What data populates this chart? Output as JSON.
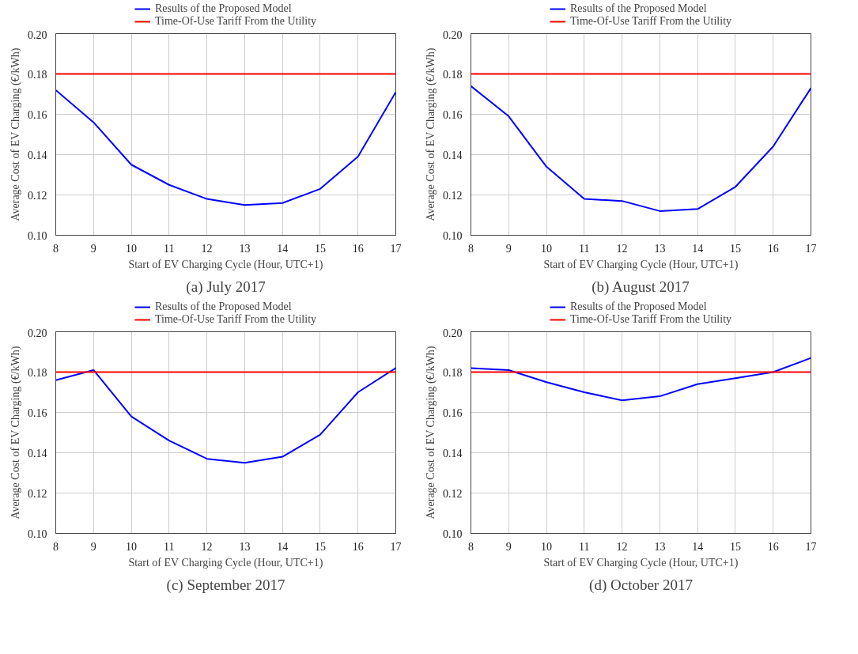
{
  "chart_data": [
    {
      "type": "line",
      "xlabel": "Start of EV Charging Cycle (Hour, UTC+1)",
      "ylabel": "Average Cost of EV Charging (€/kWh)",
      "annotations": [
        "(a) July 2017"
      ],
      "x": [
        8,
        9,
        10,
        11,
        12,
        13,
        14,
        15,
        16,
        17
      ],
      "series": [
        {
          "name": "Results of the Proposed Model",
          "color": "#0000ff",
          "values": [
            0.172,
            0.156,
            0.135,
            0.125,
            0.118,
            0.115,
            0.116,
            0.123,
            0.139,
            0.171
          ]
        }
      ],
      "ref_lines": [
        {
          "axis": "y",
          "value": 0.18,
          "label": "Time-Of-Use Tariff From the Utility",
          "color": "#ff0000"
        }
      ],
      "xlim": [
        8,
        17
      ],
      "ylim": [
        0.1,
        0.2
      ],
      "xticks": [
        8,
        9,
        10,
        11,
        12,
        13,
        14,
        15,
        16,
        17
      ],
      "yticks": [
        {
          "value": 0.1,
          "label": "0.10"
        },
        {
          "value": 0.12,
          "label": "0.12"
        },
        {
          "value": 0.14,
          "label": "0.14"
        },
        {
          "value": 0.16,
          "label": "0.16"
        },
        {
          "value": 0.18,
          "label": "0.18"
        },
        {
          "value": 0.2,
          "label": "0.20"
        }
      ],
      "grid": true,
      "legend": "top",
      "marker": "none",
      "line_style": "solid"
    },
    {
      "type": "line",
      "xlabel": "Start of EV Charging Cycle (Hour, UTC+1)",
      "ylabel": "Average Cost of EV Charging (€/kWh)",
      "annotations": [
        "(b) August 2017"
      ],
      "x": [
        8,
        9,
        10,
        11,
        12,
        13,
        14,
        15,
        16,
        17
      ],
      "series": [
        {
          "name": "Results of the Proposed Model",
          "color": "#0000ff",
          "values": [
            0.174,
            0.159,
            0.134,
            0.118,
            0.117,
            0.112,
            0.113,
            0.124,
            0.144,
            0.173
          ]
        }
      ],
      "ref_lines": [
        {
          "axis": "y",
          "value": 0.18,
          "label": "Time-Of-Use Tariff From the Utility",
          "color": "#ff0000"
        }
      ],
      "xlim": [
        8,
        17
      ],
      "ylim": [
        0.1,
        0.2
      ],
      "xticks": [
        8,
        9,
        10,
        11,
        12,
        13,
        14,
        15,
        16,
        17
      ],
      "yticks": [
        {
          "value": 0.1,
          "label": "0.10"
        },
        {
          "value": 0.12,
          "label": "0.12"
        },
        {
          "value": 0.14,
          "label": "0.14"
        },
        {
          "value": 0.16,
          "label": "0.16"
        },
        {
          "value": 0.18,
          "label": "0.18"
        },
        {
          "value": 0.2,
          "label": "0.20"
        }
      ],
      "grid": true,
      "legend": "top",
      "marker": "none",
      "line_style": "solid"
    },
    {
      "type": "line",
      "xlabel": "Start of EV Charging Cycle (Hour, UTC+1)",
      "ylabel": "Average Cost of EV Charging (€/kWh)",
      "annotations": [
        "(c) September 2017"
      ],
      "x": [
        8,
        9,
        10,
        11,
        12,
        13,
        14,
        15,
        16,
        17
      ],
      "series": [
        {
          "name": "Results of the Proposed Model",
          "color": "#0000ff",
          "values": [
            0.176,
            0.181,
            0.158,
            0.146,
            0.137,
            0.135,
            0.138,
            0.149,
            0.17,
            0.182
          ]
        }
      ],
      "ref_lines": [
        {
          "axis": "y",
          "value": 0.18,
          "label": "Time-Of-Use Tariff From the Utility",
          "color": "#ff0000"
        }
      ],
      "xlim": [
        8,
        17
      ],
      "ylim": [
        0.1,
        0.2
      ],
      "xticks": [
        8,
        9,
        10,
        11,
        12,
        13,
        14,
        15,
        16,
        17
      ],
      "yticks": [
        {
          "value": 0.1,
          "label": "0.10"
        },
        {
          "value": 0.12,
          "label": "0.12"
        },
        {
          "value": 0.14,
          "label": "0.14"
        },
        {
          "value": 0.16,
          "label": "0.16"
        },
        {
          "value": 0.18,
          "label": "0.18"
        },
        {
          "value": 0.2,
          "label": "0.20"
        }
      ],
      "grid": true,
      "legend": "top",
      "marker": "none",
      "line_style": "solid"
    },
    {
      "type": "line",
      "xlabel": "Start of EV Charging Cycle (Hour, UTC+1)",
      "ylabel": "Average Cost of EV Charging (€/kWh)",
      "annotations": [
        "(d) October 2017"
      ],
      "x": [
        8,
        9,
        10,
        11,
        12,
        13,
        14,
        15,
        16,
        17
      ],
      "series": [
        {
          "name": "Results of the Proposed Model",
          "color": "#0000ff",
          "values": [
            0.182,
            0.181,
            0.175,
            0.17,
            0.166,
            0.168,
            0.174,
            0.177,
            0.18,
            0.187
          ]
        }
      ],
      "ref_lines": [
        {
          "axis": "y",
          "value": 0.18,
          "label": "Time-Of-Use Tariff From the Utility",
          "color": "#ff0000"
        }
      ],
      "xlim": [
        8,
        17
      ],
      "ylim": [
        0.1,
        0.2
      ],
      "xticks": [
        8,
        9,
        10,
        11,
        12,
        13,
        14,
        15,
        16,
        17
      ],
      "yticks": [
        {
          "value": 0.1,
          "label": "0.10"
        },
        {
          "value": 0.12,
          "label": "0.12"
        },
        {
          "value": 0.14,
          "label": "0.14"
        },
        {
          "value": 0.16,
          "label": "0.16"
        },
        {
          "value": 0.18,
          "label": "0.18"
        },
        {
          "value": 0.2,
          "label": "0.20"
        }
      ],
      "grid": true,
      "legend": "top",
      "marker": "none",
      "line_style": "solid"
    }
  ]
}
